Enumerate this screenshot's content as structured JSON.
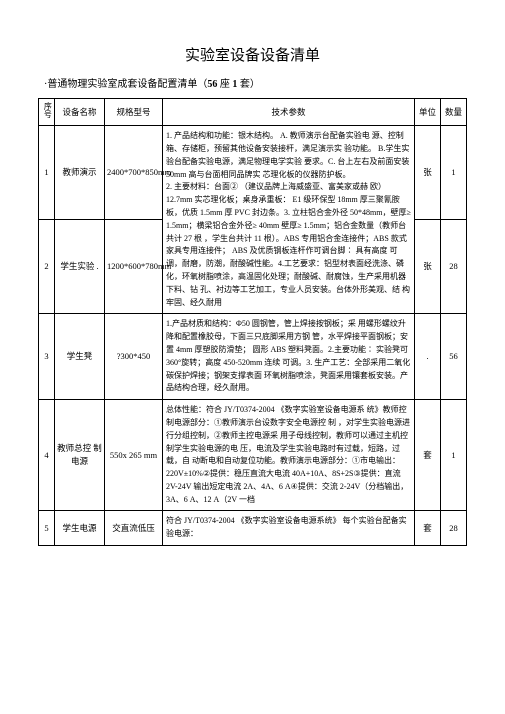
{
  "title": "实验室设备设备清单",
  "subtitle_prefix": "·普通物理实验室成套设备配置清单（",
  "subtitle_bold1": "56",
  "subtitle_mid": " 座 ",
  "subtitle_bold2": "1",
  "subtitle_suffix": " 套）",
  "headers": {
    "num": "序号",
    "name": "设备名称",
    "spec": "规格型号",
    "tech": "技术参数",
    "unit": "单位",
    "qty": "数量"
  },
  "rows": [
    {
      "num": "1",
      "name": "教师演示",
      "spec": "2400*700*850mm",
      "tech": "1. 产品结构和功能：银木结构。 A. 教师演示台配备实验电 源、控制箱、存储柜，预留其他设备安装接杆，满足演示实 验功能。 B.学生实验台配备实验电源，满足物理电学实验 要求。C. 台上左右及前面安装 50mm 高与台面相同品牌实 芯理化板的仪器防护板。",
      "unit": "张",
      "qty": "1",
      "rowspan_tech": 2
    },
    {
      "num": "2",
      "name": "学生实验 .",
      "spec": "1200*600*780mm",
      "tech_extra": "2. 主要材料：台面② （建议品牌上海威盛亚、富美家或赫 欧）12.7mm 实芯理化板；桌身承重板： E1 级环保型 18mm 厚三聚氰胺板，优质 1.5mm 厚 PVC 封边条。3. 立柱铝合金外径 50*48mm，壁厚≥ 1.5mm；横梁铝合金外径≥ 40mm 壁厚≥ 1.5mm；铝合金数量（教师台共计 27 根 ，学生台共计 11 根）。ABS 专用铝合金连接件；ABS 款式家具专用连接件； ABS 及优质钢板连杆作可调台脚∶ 具有高度 可调，耐磨，防潮，耐酸碱性能。4.工艺要求：铝型材表面经洗涤、磷化，环氧树脂喷涂，高温固化处理；耐酸碱、耐腐蚀，生产采用机器下料、钻 孔、衬边等工艺加工，专业人员安装。台体外形美观、结 构牢固、经久耐用",
      "unit": "张",
      "qty": "28"
    },
    {
      "num": "3",
      "name": "学生凳",
      "spec": "?300*450",
      "tech": "1.产品材质和结构：Φ50 圆钢管，管上焊接按钢板；采 用螺形螺纹升降和配置橡胶母，下面三只底脚采用方钢 管，水平焊接平面钢板；安置 4mm 厚塑胶防滑垫； 圆形 ABS 塑料凳面。2.主要功能∶ 实验凳可 360°旋转；高度 450-520mm 连续 可调。3. 生产工艺：全部采用二氧化碳保护焊接；钢架支撑表面 环氧树脂喷涂，凳面采用镶套板安装。产品结构合理，经久耐用。",
      "unit": ".",
      "qty": "56"
    },
    {
      "num": "4",
      "name": "教师总控 制电源",
      "spec": "550x 265 mm",
      "tech": "总体性能：符合 JY/T0374-2004 《数字实验室设备电源系 统》教师控制电源部分：①教师演示台设数字安全电源控 制 ，对学生实验电源进行分组控制，②教师主控电源采 用子母线控制，教师可以通过主机控制学生实验电源的电 压，电流及学生实验电路时有过载，短路，过载，自 动断电和自动复位功能。教师演示电源部分：①市电输出：220V±10%②提供：稳压直流大电流 40A+10A、8S+2S③提供：直流 2V-24V 输出短定电流 2A、4A、6 A④提供：交流 2-24V（分档输出，3A、6 A、12 A（2V 一档",
      "unit": "套",
      "qty": "1"
    },
    {
      "num": "5",
      "name": "学生电源",
      "spec": "交直流低压",
      "tech": "符合 JY/T0374-2004 《数字实验室设备电源系统》 每个实验台配备实验电源：",
      "unit": "套",
      "qty": "28"
    }
  ]
}
